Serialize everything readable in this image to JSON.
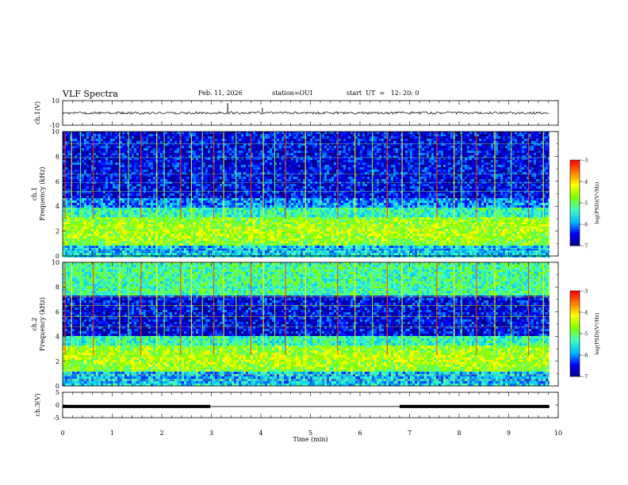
{
  "header": {
    "title": "VLF Spectra",
    "date": "Feb. 11, 2026",
    "station": "station=OUI",
    "start": "start  UT  =   12: 20: 0"
  },
  "colorbar": {
    "label": "log(PSD)(V²/Hz)",
    "ticks": [
      "-3",
      "-4",
      "-5",
      "-6",
      "-7"
    ],
    "range": [
      -7,
      -3
    ],
    "colors": [
      "#000080",
      "#0000ff",
      "#00c0ff",
      "#40ffbf",
      "#80ff00",
      "#ffff00",
      "#ff8000",
      "#ff0000",
      "#ffffff"
    ]
  },
  "chart_data": [
    {
      "type": "line",
      "name": "waveform-ch1",
      "ylabel": "ch.1(V)",
      "ylim": [
        -10,
        10
      ],
      "yticks": [
        "10",
        "-10"
      ],
      "baseline": 0,
      "spikes": [
        {
          "x": 3.33,
          "y": 8
        },
        {
          "x": 4.03,
          "y": 4
        }
      ],
      "line_color": "#000000"
    },
    {
      "type": "heatmap",
      "name": "spectrogram-ch1",
      "ylabel": "ch.1",
      "ylabel2": "Frequency  (kHz)",
      "ylim": [
        0,
        10
      ],
      "yticks": [
        "0",
        "2",
        "4",
        "6",
        "8",
        "10"
      ],
      "bands_khz": {
        "strong": [
          1.0,
          3.2
        ],
        "weak": [
          3.8,
          4.8
        ]
      },
      "sferic_times_min": [
        0.05,
        0.18,
        0.36,
        0.62,
        1.15,
        1.33,
        1.58,
        1.9,
        2.05,
        2.38,
        2.6,
        2.82,
        3.05,
        3.25,
        3.5,
        3.8,
        4.05,
        4.28,
        4.5,
        4.9,
        5.2,
        5.55,
        5.9,
        6.25,
        6.55,
        6.85,
        7.2,
        7.55,
        7.9,
        8.05,
        8.35,
        8.72,
        9.05,
        9.4,
        9.7
      ]
    },
    {
      "type": "heatmap",
      "name": "spectrogram-ch2",
      "ylabel": "ch.2",
      "ylabel2": "Frequency  (kHz)",
      "ylim": [
        0,
        10
      ],
      "yticks": [
        "0",
        "2",
        "4",
        "6",
        "8",
        "10"
      ],
      "bands_khz": {
        "strong": [
          1.2,
          3.4
        ],
        "weak": [
          7.5,
          10.0
        ]
      },
      "sferic_times_min": [
        0.05,
        0.18,
        0.36,
        0.62,
        1.15,
        1.33,
        1.58,
        1.9,
        2.05,
        2.38,
        2.6,
        2.82,
        3.05,
        3.25,
        3.5,
        3.8,
        4.05,
        4.28,
        4.5,
        4.9,
        5.2,
        5.55,
        5.9,
        6.25,
        6.55,
        6.85,
        7.2,
        7.55,
        7.9,
        8.05,
        8.35,
        8.72,
        9.05,
        9.4,
        9.7
      ]
    },
    {
      "type": "line",
      "name": "waveform-ch3",
      "ylabel": "ch.3(V)",
      "ylim": [
        -5,
        5
      ],
      "yticks": [
        "5",
        "0",
        "-5"
      ],
      "segments": [
        {
          "x0": 0,
          "x1": 2.98,
          "y": -0.6,
          "thick": true
        },
        {
          "x0": 2.98,
          "x1": 6.8,
          "y": -0.6,
          "thick": false
        },
        {
          "x0": 6.8,
          "x1": 9.82,
          "y": -0.6,
          "thick": true
        }
      ]
    }
  ],
  "xaxis": {
    "label": "Time  (min)",
    "ticks": [
      "0",
      "1",
      "2",
      "3",
      "4",
      "5",
      "6",
      "7",
      "8",
      "9",
      "10"
    ],
    "xlim": [
      0,
      10
    ],
    "data_end": 9.82
  }
}
